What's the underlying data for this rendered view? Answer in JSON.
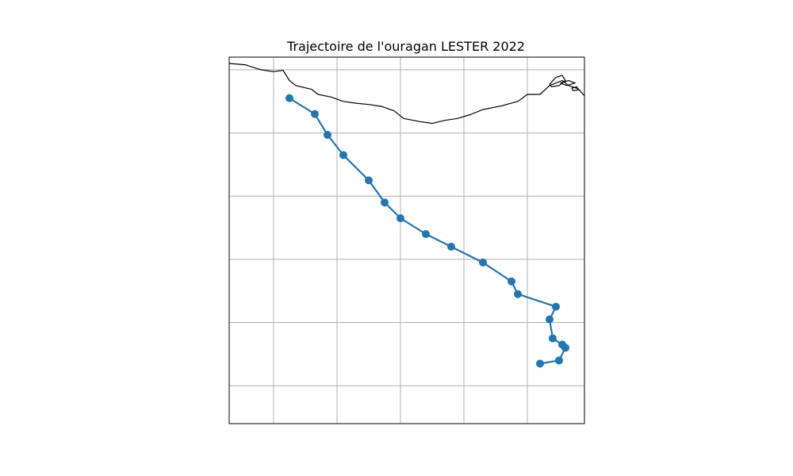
{
  "chart_data": {
    "type": "line",
    "title": "Trajectoire de l'ouragan LESTER 2022",
    "projection": "map",
    "grid": true,
    "legend": "none",
    "series": [
      {
        "x": [
          -100.1,
          -99.8,
          -99.7,
          -99.75,
          -99.9,
          -99.95,
          -99.85,
          -100.45,
          -100.55,
          -101.0,
          -101.5,
          -101.9,
          -102.3,
          -102.55,
          -102.8,
          -103.2,
          -103.45,
          -103.65,
          -104.05
        ],
        "y": [
          14.1,
          14.15,
          14.35,
          14.4,
          14.5,
          14.8,
          15.0,
          15.2,
          15.4,
          15.7,
          15.95,
          16.15,
          16.4,
          16.65,
          17.0,
          17.4,
          17.72,
          18.05,
          18.3
        ],
        "marker": "o",
        "color": "#1f77b4"
      }
    ],
    "xlim": [
      -105,
      -99.4
    ],
    "ylim": [
      13.15,
      18.95
    ],
    "grid_lons": [
      -104.3,
      -103.3,
      -102.3,
      -101.3,
      -100.3
    ],
    "grid_lats": [
      13.75,
      14.75,
      15.75,
      16.75,
      17.75,
      18.75
    ],
    "coastline": [
      [
        -105,
        18.85
      ],
      [
        -104.75,
        18.83
      ],
      [
        -104.5,
        18.75
      ],
      [
        -104.3,
        18.72
      ],
      [
        -104.15,
        18.74
      ],
      [
        -104.05,
        18.58
      ],
      [
        -103.95,
        18.5
      ],
      [
        -103.7,
        18.44
      ],
      [
        -103.6,
        18.36
      ],
      [
        -103.4,
        18.32
      ],
      [
        -103.2,
        18.25
      ],
      [
        -103.0,
        18.22
      ],
      [
        -102.8,
        18.2
      ],
      [
        -102.6,
        18.17
      ],
      [
        -102.4,
        18.1
      ],
      [
        -102.25,
        17.98
      ],
      [
        -102.0,
        17.93
      ],
      [
        -101.8,
        17.9
      ],
      [
        -101.6,
        17.95
      ],
      [
        -101.4,
        17.98
      ],
      [
        -101.2,
        18.04
      ],
      [
        -101.0,
        18.12
      ],
      [
        -100.7,
        18.18
      ],
      [
        -100.45,
        18.25
      ],
      [
        -100.3,
        18.36
      ],
      [
        -100.1,
        18.36
      ],
      [
        -99.95,
        18.5
      ],
      [
        -99.9,
        18.52
      ],
      [
        -99.75,
        18.58
      ],
      [
        -99.65,
        18.5
      ],
      [
        -99.5,
        18.45
      ],
      [
        -99.4,
        18.34
      ]
    ],
    "islands": [
      [
        [
          -99.95,
          18.52
        ],
        [
          -99.85,
          18.63
        ],
        [
          -99.75,
          18.66
        ],
        [
          -99.7,
          18.58
        ],
        [
          -99.8,
          18.5
        ],
        [
          -99.92,
          18.48
        ],
        [
          -99.95,
          18.52
        ]
      ],
      [
        [
          -99.78,
          18.54
        ],
        [
          -99.65,
          18.58
        ],
        [
          -99.55,
          18.54
        ],
        [
          -99.68,
          18.5
        ],
        [
          -99.78,
          18.54
        ]
      ],
      [
        [
          -99.6,
          18.46
        ],
        [
          -99.52,
          18.48
        ],
        [
          -99.5,
          18.43
        ],
        [
          -99.58,
          18.42
        ],
        [
          -99.6,
          18.46
        ]
      ]
    ]
  }
}
